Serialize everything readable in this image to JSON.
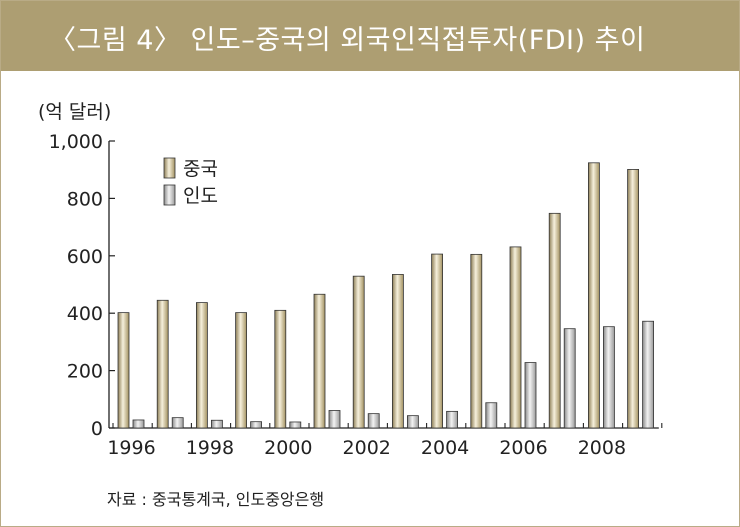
{
  "header": {
    "title": "〈그림 4〉 인도–중국의 외국인직접투자(FDI) 추이"
  },
  "unit_label": "(억 달러)",
  "source_note": "자료 : 중국통계국, 인도중앙은행",
  "colors": {
    "header_bg": "#ad9e72",
    "china": "#cfc19a",
    "india": "#c9c9c9"
  },
  "chart_data": {
    "type": "bar",
    "title": "〈그림 4〉 인도–중국의 외국인직접투자(FDI) 추이",
    "ylabel": "(억 달러)",
    "xlabel": "",
    "ylim": [
      0,
      1000
    ],
    "yticks": [
      0,
      200,
      400,
      600,
      800,
      1000
    ],
    "ytick_labels": [
      "0",
      "200",
      "400",
      "600",
      "800",
      "1,000"
    ],
    "categories": [
      "1996",
      "1997",
      "1998",
      "1999",
      "2000",
      "2001",
      "2002",
      "2003",
      "2004",
      "2005",
      "2006",
      "2007",
      "2008",
      "2009"
    ],
    "xtick_labels": [
      "1996",
      "1998",
      "2000",
      "2002",
      "2004",
      "2006",
      "2008"
    ],
    "legend": [
      "중국",
      "인도"
    ],
    "legend_position": "top-left",
    "series": [
      {
        "name": "중국",
        "values": [
          402,
          445,
          437,
          402,
          410,
          466,
          529,
          535,
          606,
          605,
          631,
          748,
          924,
          901
        ]
      },
      {
        "name": "인도",
        "values": [
          28,
          36,
          27,
          22,
          21,
          61,
          50,
          43,
          58,
          88,
          228,
          346,
          353,
          372
        ]
      }
    ]
  }
}
